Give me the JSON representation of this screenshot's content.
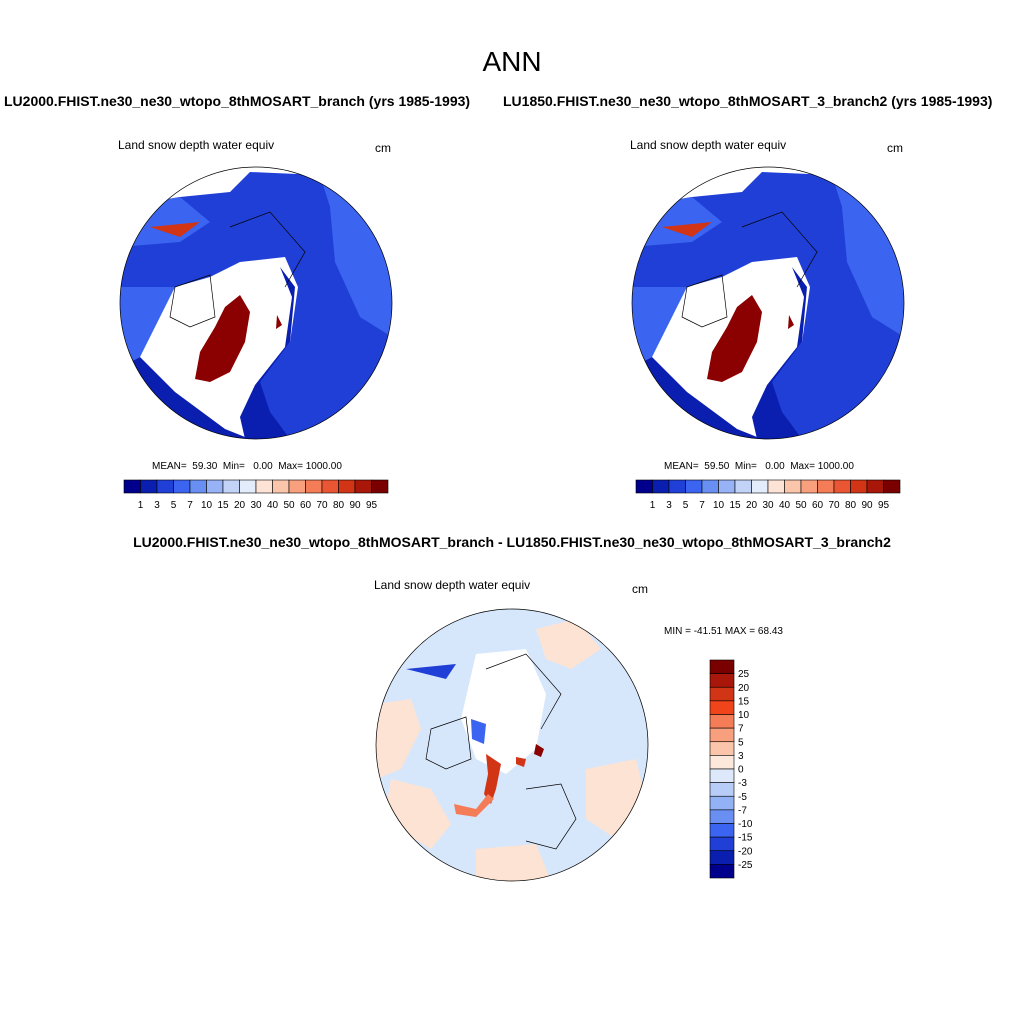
{
  "title": "ANN",
  "panels": {
    "a": {
      "run_title": "LU2000.FHIST.ne30_ne30_wtopo_8thMOSART_branch (yrs 1985-1993)",
      "variable": "Land snow depth water equiv",
      "units": "cm",
      "mean_label": "MEAN=",
      "mean": "59.30",
      "min_label": "Min=",
      "min": "0.00",
      "max_label": "Max=",
      "max": "1000.00"
    },
    "b": {
      "run_title": "LU1850.FHIST.ne30_ne30_wtopo_8thMOSART_3_branch2 (yrs 1985-1993)",
      "variable": "Land snow depth water equiv",
      "units": "cm",
      "mean_label": "MEAN=",
      "mean": "59.50",
      "min_label": "Min=",
      "min": "0.00",
      "max_label": "Max=",
      "max": "1000.00"
    },
    "diff": {
      "run_title": "LU2000.FHIST.ne30_ne30_wtopo_8thMOSART_branch - LU1850.FHIST.ne30_ne30_wtopo_8thMOSART_3_branch2",
      "variable": "Land snow depth water equiv",
      "units": "cm",
      "range_label": "MIN = -41.51 MAX =  68.43"
    }
  },
  "colorbar_abs": {
    "labels": [
      "1",
      "3",
      "5",
      "7",
      "10",
      "15",
      "20",
      "30",
      "40",
      "50",
      "60",
      "70",
      "80",
      "90",
      "95"
    ],
    "colors": [
      "#00008c",
      "#0a1fb0",
      "#1f3fd6",
      "#3b64f0",
      "#6a8ff2",
      "#97b2f5",
      "#c3d3f8",
      "#e3ecfb",
      "#fde3d5",
      "#fbc5ab",
      "#f8a07e",
      "#f47d58",
      "#ea5634",
      "#d13516",
      "#a8170a",
      "#7a0000"
    ]
  },
  "colorbar_diff": {
    "labels": [
      "25",
      "20",
      "15",
      "10",
      "7",
      "5",
      "3",
      "0",
      "-3",
      "-5",
      "-7",
      "-10",
      "-15",
      "-20",
      "-25"
    ],
    "colors": [
      "#7a0000",
      "#a8170a",
      "#d13516",
      "#f0441a",
      "#f47d58",
      "#f8a07e",
      "#fbc5ab",
      "#fde8dc",
      "#dde8fb",
      "#b7cdf8",
      "#93b2f5",
      "#6a8ff2",
      "#3b64f0",
      "#1f3fd6",
      "#0a1fb0",
      "#00008c"
    ]
  },
  "map_colors": {
    "snow_blue_deep": "#0a1fb0",
    "snow_blue_mid": "#1f3fd6",
    "snow_blue_light": "#3b64f0",
    "snow_high": "#8b0000",
    "diff_light_blue": "#d6e6fb",
    "diff_light_red": "#fde3d3"
  }
}
